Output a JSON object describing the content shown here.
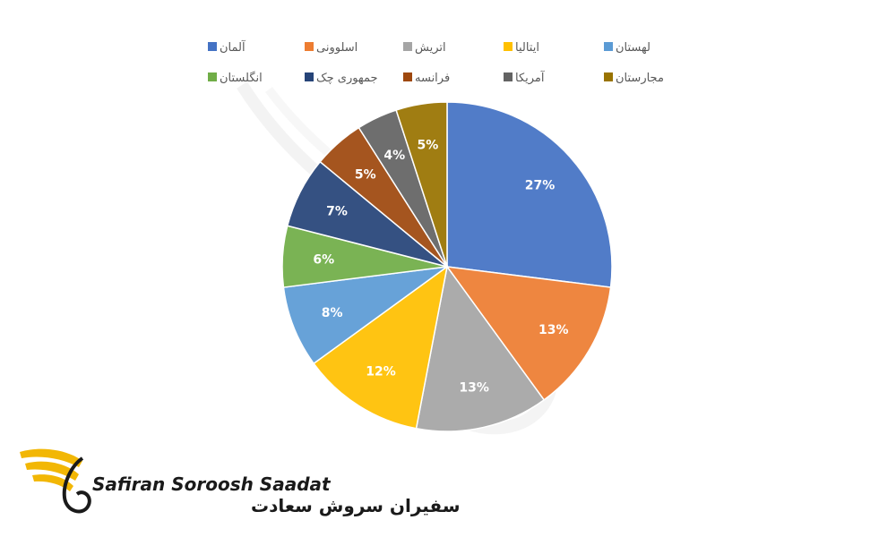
{
  "chart_data": {
    "type": "pie",
    "legend_position": "top",
    "categories": [
      "آلمان",
      "اسلوونی",
      "اتریش",
      "ایتالیا",
      "لهستان",
      "انگلستان",
      "جمهوری چک",
      "فرانسه",
      "آمریکا",
      "مجارستان"
    ],
    "values": [
      27,
      13,
      13,
      12,
      8,
      6,
      7,
      5,
      4,
      5
    ],
    "labels": [
      "27%",
      "13%",
      "13%",
      "12%",
      "8%",
      "6%",
      "7%",
      "5%",
      "4%",
      "5%"
    ],
    "colors": [
      "#4472C4",
      "#ED7D31",
      "#A5A5A5",
      "#FFC000",
      "#5B9BD5",
      "#70AD47",
      "#264478",
      "#9E480E",
      "#636363",
      "#997300"
    ],
    "legend_order": [
      0,
      1,
      2,
      3,
      4,
      5,
      6,
      7,
      8,
      9
    ]
  },
  "watermark": {
    "text_latin": "Safiran Soroosh Saadat",
    "text_farsi": "سفیران سروش سعادت",
    "accent_color": "#F2B705"
  }
}
